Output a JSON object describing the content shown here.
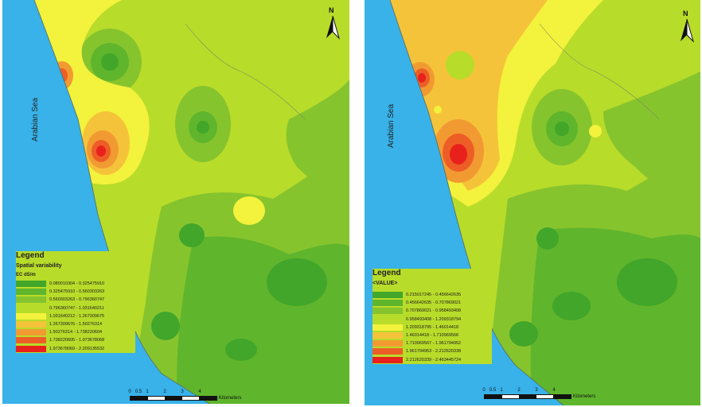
{
  "maps": [
    {
      "sea_label": "Arabian Sea",
      "north_label": "N",
      "legend": {
        "title": "Legend",
        "subtitle": "Spatial variability",
        "unit": "EC dS/m",
        "classes": [
          {
            "color": "#41a62a",
            "label": "0.080010304 - 0.325475910"
          },
          {
            "color": "#5fb52c",
            "label": "0.325475910 - 0.560303263"
          },
          {
            "color": "#86c42e",
            "label": "0.560303263 - 0.796360747"
          },
          {
            "color": "#b8dc2a",
            "label": "0.796360747 - 1.031640211"
          },
          {
            "color": "#f3f23c",
            "label": "1.031640212 - 1.267309675"
          },
          {
            "color": "#f5c33a",
            "label": "1.267309676 - 1.50276314"
          },
          {
            "color": "#f29a32",
            "label": "1.50276314 - 1.738220604"
          },
          {
            "color": "#ed5e26",
            "label": "1.738220605 - 1.973678068"
          },
          {
            "color": "#e8211c",
            "label": "1.973678069 - 2.209135532"
          }
        ]
      },
      "scale": {
        "ticks": [
          "0",
          "0.5",
          "1",
          "2",
          "3",
          "4"
        ],
        "units": "Kilometers"
      }
    },
    {
      "sea_label": "Arabian Sea",
      "north_label": "N",
      "legend": {
        "title": "Legend",
        "subtitle": "<VALUE>",
        "unit": "",
        "classes": [
          {
            "color": "#41a62a",
            "label": "0.215017245 - 0.456642635"
          },
          {
            "color": "#5fb52c",
            "label": "0.456642635 - 0.707869021"
          },
          {
            "color": "#86c42e",
            "label": "0.707869021 - 0.958493408"
          },
          {
            "color": "#b8dc2a",
            "label": "0.958493408 - 1.209318794"
          },
          {
            "color": "#f3f23c",
            "label": "1.209318795 - 1.46014418"
          },
          {
            "color": "#f5c33a",
            "label": "1.46014418 - 1.710969566"
          },
          {
            "color": "#f29a32",
            "label": "1.710969567 - 1.961794952"
          },
          {
            "color": "#ed5e26",
            "label": "1.961794953 - 2.212620338"
          },
          {
            "color": "#e8211c",
            "label": "2.212620339 - 2.463445724"
          }
        ]
      },
      "scale": {
        "ticks": [
          "0",
          "0.5",
          "1",
          "2",
          "3",
          "4"
        ],
        "units": "Kilometers"
      }
    }
  ]
}
